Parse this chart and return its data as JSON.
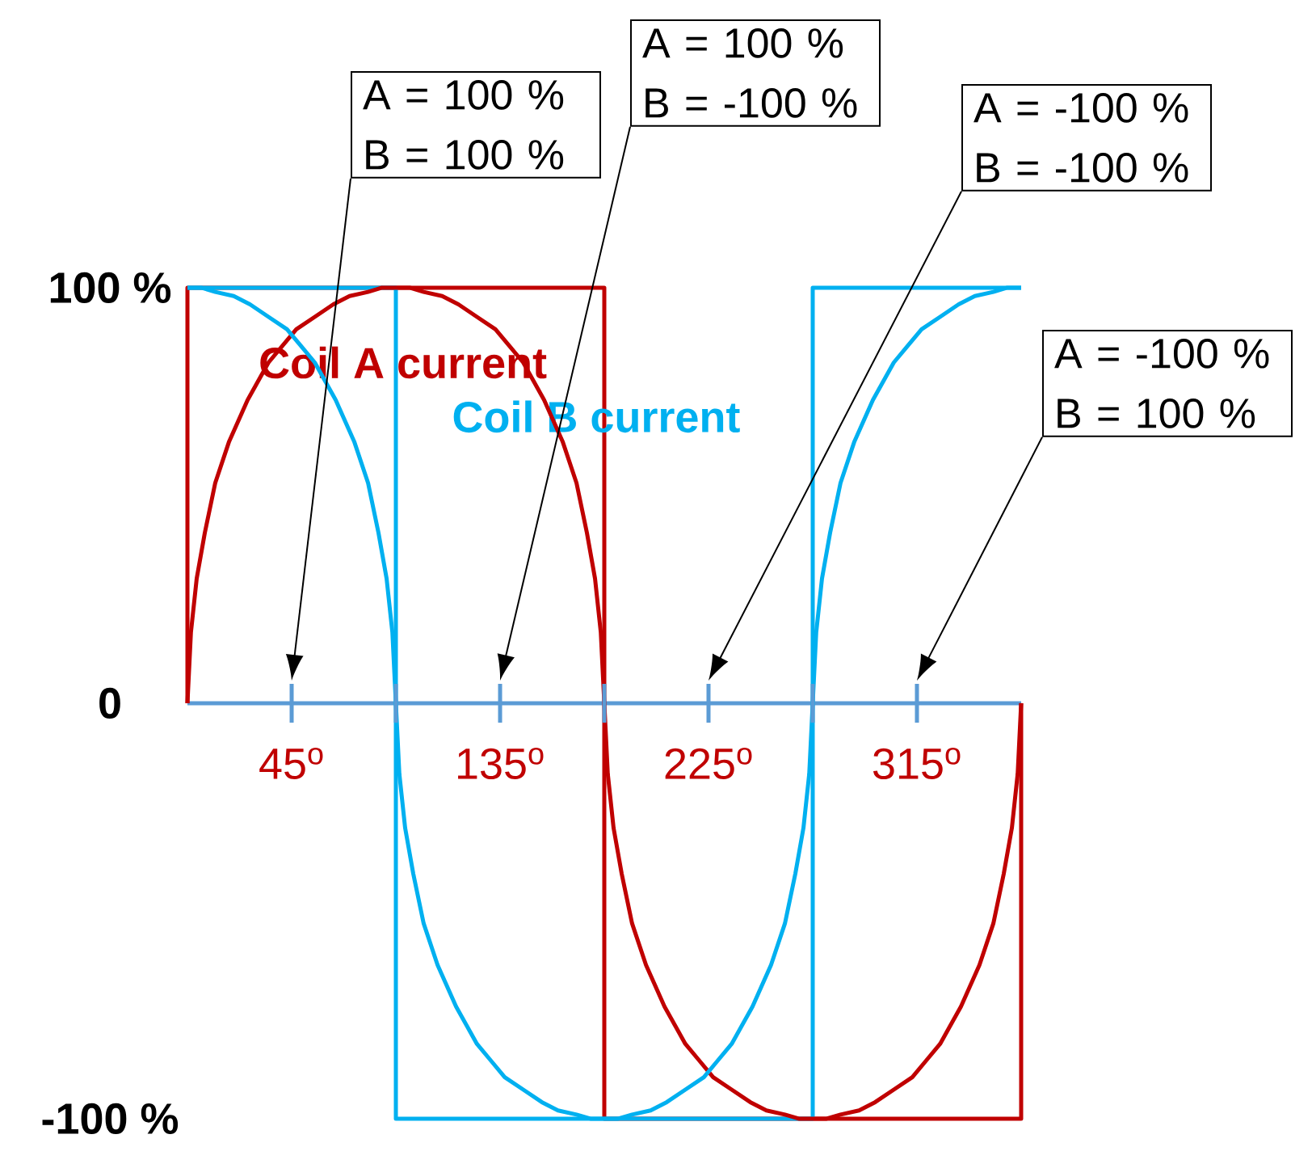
{
  "chart_data": {
    "type": "line",
    "xlim": [
      0,
      360
    ],
    "xticks": [
      {
        "value": 45,
        "label": "45$^{o}$"
      },
      {
        "value": 90,
        "label": null
      },
      {
        "value": 135,
        "label": "135$^{o}$"
      },
      {
        "value": 180,
        "label": null
      },
      {
        "value": 225,
        "label": "225$^{o}$"
      },
      {
        "value": 270,
        "label": null
      },
      {
        "value": 315,
        "label": "315$^{o}$"
      }
    ],
    "ylim": [
      -100,
      100
    ],
    "yticks": [
      {
        "value": 100,
        "label": "100 %"
      },
      0,
      {
        "value": -100,
        "label": "-100 %"
      }
    ],
    "series": [
      {
        "name": "Coil A current",
        "color": "#c00000",
        "x": [
          0,
          0,
          180,
          180,
          360,
          360
        ],
        "values": [
          0,
          100,
          100,
          -100,
          -100,
          0
        ]
      },
      {
        "name": "Coil B current",
        "color": "#00b0f0",
        "x": [
          0,
          90,
          90,
          270,
          270,
          360
        ],
        "values": [
          100,
          100,
          -100,
          -100,
          100,
          100
        ]
      },
      {
        "color": "#c00000",
        "x": [
          0,
          1.5,
          4,
          7.5,
          12,
          18,
          26,
          35,
          41,
          47,
          55,
          63,
          70,
          78,
          84,
          90,
          96,
          102,
          110,
          117,
          125,
          133,
          139,
          145,
          154,
          162,
          168,
          172.5,
          176,
          178.5,
          180,
          181.5,
          184,
          187.5,
          192,
          198,
          206,
          215,
          221,
          227,
          235,
          243,
          250,
          258,
          264,
          270,
          276,
          282,
          290,
          297,
          305,
          313,
          319,
          325,
          334,
          342,
          348,
          352.5,
          356,
          358.5,
          360
        ],
        "values": [
          0,
          17,
          30,
          41,
          53,
          63,
          73,
          82,
          86,
          90,
          93,
          96,
          98,
          99,
          100,
          100,
          100,
          99,
          98,
          96,
          93,
          90,
          86,
          82,
          73,
          63,
          53,
          41,
          30,
          17,
          0,
          -17,
          -30,
          -41,
          -53,
          -63,
          -73,
          -82,
          -86,
          -90,
          -93,
          -96,
          -98,
          -99,
          -100,
          -100,
          -100,
          -99,
          -98,
          -96,
          -93,
          -90,
          -86,
          -82,
          -73,
          -63,
          -53,
          -41,
          -30,
          -17,
          0
        ]
      },
      {
        "color": "#00b0f0",
        "x": [
          0,
          6,
          12,
          20,
          27,
          35,
          43,
          49,
          55,
          64,
          72,
          78,
          82.5,
          86,
          88.5,
          90,
          91.5,
          94,
          97.5,
          102,
          108,
          116,
          125,
          131,
          137,
          145,
          153,
          160,
          168,
          174,
          180,
          186,
          192,
          200,
          207,
          215,
          223,
          229,
          235,
          244,
          252,
          258,
          262.5,
          266,
          268.5,
          270,
          271.5,
          274,
          277.5,
          282,
          288,
          296,
          305,
          311,
          317,
          325,
          333,
          340,
          348,
          354,
          360
        ],
        "values": [
          100,
          100,
          99,
          98,
          96,
          93,
          90,
          86,
          82,
          73,
          63,
          53,
          41,
          30,
          17,
          0,
          -17,
          -30,
          -41,
          -53,
          -63,
          -73,
          -82,
          -86,
          -90,
          -93,
          -96,
          -98,
          -99,
          -100,
          -100,
          -100,
          -99,
          -98,
          -96,
          -93,
          -90,
          -86,
          -82,
          -73,
          -63,
          -53,
          -41,
          -30,
          -17,
          0,
          17,
          30,
          41,
          53,
          63,
          73,
          82,
          86,
          90,
          93,
          96,
          98,
          99,
          100,
          100
        ]
      }
    ],
    "annotations": [
      "A = 100 % B = 100 %",
      "A = 100 % B = -100 %",
      "A = -100 % B = -100 %",
      "A = -100 % B = 100 %"
    ]
  }
}
